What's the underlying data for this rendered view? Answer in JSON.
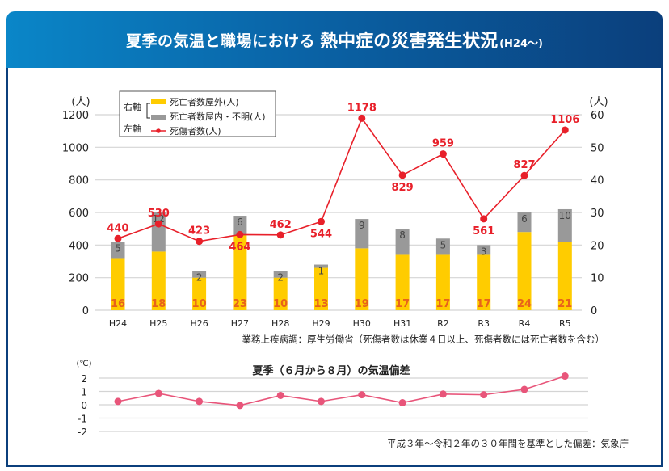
{
  "header": {
    "title_part1": "夏季の気温と職場における",
    "title_part2": "熱中症の災害発生状況",
    "title_part3": "(H24〜)"
  },
  "chart_data": [
    {
      "type": "bar+line",
      "title": "夏季の気温と職場における 熱中症の災害発生状況(H24〜)",
      "categories": [
        "H24",
        "H25",
        "H26",
        "H27",
        "H28",
        "H29",
        "H30",
        "H31",
        "R2",
        "R3",
        "R4",
        "R5"
      ],
      "left_axis": {
        "unit": "(人)",
        "ylim": [
          0,
          1200
        ],
        "ticks": [
          "0",
          "200",
          "400",
          "600",
          "800",
          "1000",
          "1200"
        ]
      },
      "right_axis": {
        "unit": "(人)",
        "ylim": [
          0,
          60
        ],
        "ticks": [
          "0",
          "10",
          "20",
          "30",
          "40",
          "50",
          "60"
        ]
      },
      "grid": true,
      "legend": {
        "placement": "top-left",
        "right_axis_label": "右軸",
        "left_axis_label": "左軸",
        "items": [
          {
            "name": "死亡者数屋外(人)",
            "color": "#ffcc00",
            "axis": "right",
            "kind": "bar"
          },
          {
            "name": "死亡者数屋内・不明(人)",
            "color": "#999999",
            "axis": "right",
            "kind": "bar"
          },
          {
            "name": "死傷者数(人)",
            "color": "#e8202a",
            "axis": "left",
            "kind": "line"
          }
        ]
      },
      "series": [
        {
          "name": "死亡者数屋外(人)",
          "axis": "right",
          "type": "stacked-bar",
          "color": "#ffcc00",
          "values": [
            16,
            18,
            10,
            23,
            10,
            13,
            19,
            17,
            17,
            17,
            24,
            21
          ]
        },
        {
          "name": "死亡者数屋内・不明(人)",
          "axis": "right",
          "type": "stacked-bar",
          "color": "#999999",
          "values": [
            5,
            12,
            2,
            6,
            2,
            1,
            9,
            8,
            5,
            3,
            6,
            10
          ]
        },
        {
          "name": "死傷者数(人)",
          "axis": "left",
          "type": "line",
          "color": "#e8202a",
          "values": [
            440,
            530,
            423,
            464,
            462,
            544,
            1178,
            829,
            959,
            561,
            827,
            1106
          ]
        }
      ],
      "source_note": "業務上疾病調：厚生労働省（死傷者数は休業４日以上、死傷者数には死亡者数を含む）"
    },
    {
      "type": "line",
      "title": "夏季（６月から８月）の気温偏差",
      "ylabel": "(℃)",
      "categories": [
        "H24",
        "H25",
        "H26",
        "H27",
        "H28",
        "H29",
        "H30",
        "H31",
        "R2",
        "R3",
        "R4",
        "R5"
      ],
      "ylim": [
        -2,
        2
      ],
      "ticks": [
        "2",
        "1",
        "0",
        "-1",
        "-2"
      ],
      "grid": true,
      "series": [
        {
          "name": "気温偏差",
          "color": "#e8557a",
          "values": [
            0.25,
            0.85,
            0.25,
            -0.05,
            0.7,
            0.25,
            0.75,
            0.15,
            0.8,
            0.75,
            1.15,
            2.15
          ]
        }
      ],
      "source_note": "平成３年〜令和２年の３０年間を基準とした偏差：気象庁"
    }
  ]
}
